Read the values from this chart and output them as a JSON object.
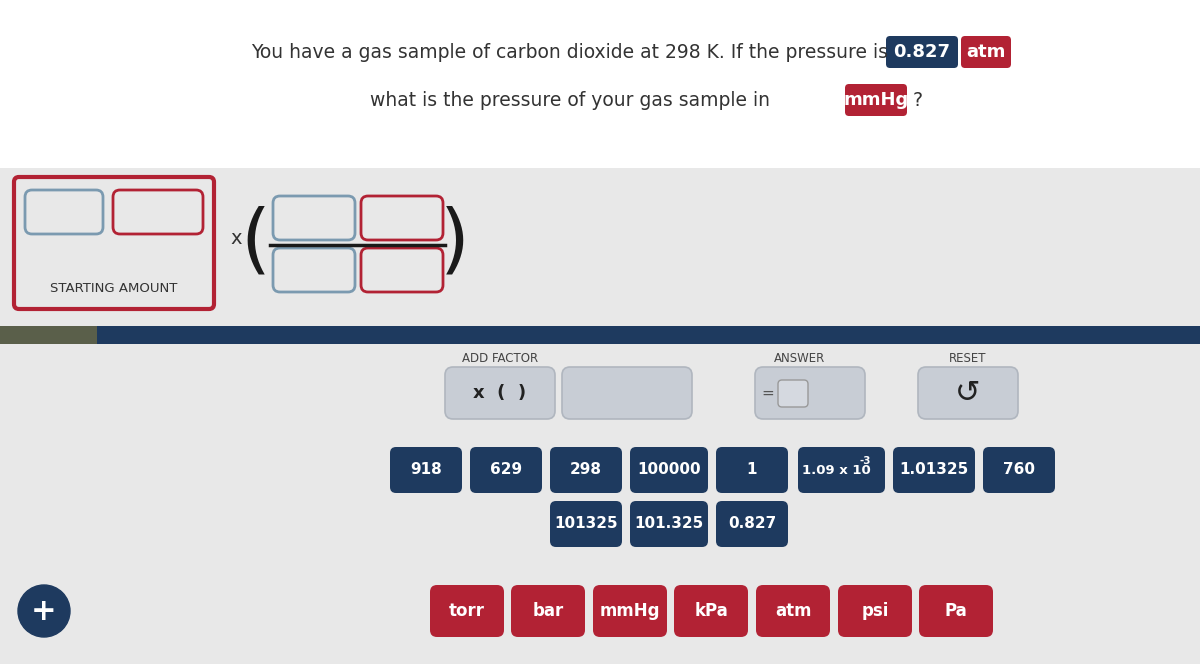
{
  "bg_top": "#ffffff",
  "bg_mid": "#e8e8e8",
  "bg_bottom": "#e8e8e8",
  "dark_navy": "#1e3a5f",
  "dark_navy2": "#2d4f7a",
  "dark_olive": "#5a5f4a",
  "red_color": "#b22234",
  "btn_gray": "#cdd1d8",
  "btn_gray_border": "#b0b6c0",
  "question_line1": "You have a gas sample of carbon dioxide at 298 K. If the pressure is",
  "value_box_text": "0.827",
  "unit_box_text": "atm",
  "question_line2": "what is the pressure of your gas sample in",
  "target_unit": "mmHg",
  "starting_amount_label": "STARTING AMOUNT",
  "add_factor_label": "ADD FACTOR",
  "answer_label": "ANSWER",
  "reset_label": "RESET",
  "number_buttons_row1": [
    "918",
    "629",
    "298",
    "100000",
    "1",
    "1.09 x 10-3",
    "1.01325",
    "760"
  ],
  "number_buttons_row2": [
    "101325",
    "101.325",
    "0.827"
  ],
  "unit_buttons": [
    "torr",
    "bar",
    "mmHg",
    "kPa",
    "atm",
    "psi",
    "Pa"
  ],
  "navy_btn_color": "#1e3a5f",
  "red_btn_color": "#b22234"
}
